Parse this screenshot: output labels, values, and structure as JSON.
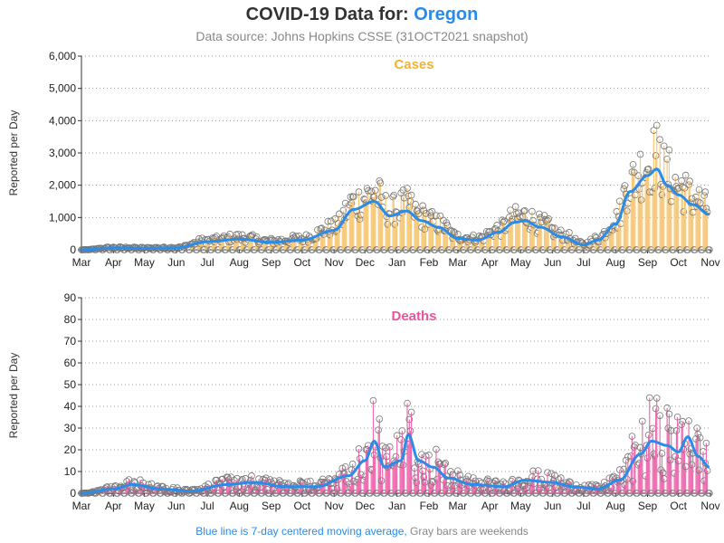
{
  "header": {
    "title_prefix": "COVID-19 Data for: ",
    "title_state": "Oregon",
    "subtitle": "Data source: Johns Hopkins CSSE (31OCT2021 snapshot)"
  },
  "footer": {
    "blue_text": "Blue line is 7-day centered moving average,",
    "gray_text": " Gray bars are weekends"
  },
  "colors": {
    "state": "#2A8BE8",
    "cases": "#F5B232",
    "cases_bar": "#F7C97A",
    "deaths": "#E8559E",
    "deaths_bar": "#EE6DB0",
    "avg_line": "#2A8BE8",
    "weekend": "#888888"
  },
  "chart_data": [
    {
      "type": "bar",
      "title": "Cases",
      "ylabel": "Reported per Day",
      "xlabel": "",
      "ylim": [
        0,
        6000
      ],
      "yticks": [
        "0",
        "1,000",
        "2,000",
        "3,000",
        "4,000",
        "5,000",
        "6,000"
      ],
      "x_months": [
        "Mar",
        "Apr",
        "May",
        "Jun",
        "Jul",
        "Aug",
        "Sep",
        "Oct",
        "Nov",
        "Dec",
        "Jan",
        "Feb",
        "Mar",
        "Apr",
        "May",
        "Jun",
        "Jul",
        "Aug",
        "Sep",
        "Oct",
        "Nov"
      ],
      "x_start": "2020-03-01",
      "x_end": "2021-11-01",
      "grid": "horizontal dotted",
      "moving_avg_knots": [
        [
          "2020-03-01",
          0
        ],
        [
          "2020-04-01",
          60
        ],
        [
          "2020-05-01",
          50
        ],
        [
          "2020-06-01",
          60
        ],
        [
          "2020-07-01",
          250
        ],
        [
          "2020-08-01",
          330
        ],
        [
          "2020-09-01",
          230
        ],
        [
          "2020-10-01",
          300
        ],
        [
          "2020-11-01",
          600
        ],
        [
          "2020-11-20",
          1250
        ],
        [
          "2020-12-10",
          1500
        ],
        [
          "2020-12-25",
          1050
        ],
        [
          "2021-01-10",
          1200
        ],
        [
          "2021-01-25",
          900
        ],
        [
          "2021-02-10",
          700
        ],
        [
          "2021-03-01",
          350
        ],
        [
          "2021-03-20",
          300
        ],
        [
          "2021-04-10",
          550
        ],
        [
          "2021-04-25",
          850
        ],
        [
          "2021-05-05",
          900
        ],
        [
          "2021-05-20",
          700
        ],
        [
          "2021-06-10",
          400
        ],
        [
          "2021-07-01",
          150
        ],
        [
          "2021-07-15",
          300
        ],
        [
          "2021-08-01",
          800
        ],
        [
          "2021-08-15",
          1800
        ],
        [
          "2021-09-01",
          2300
        ],
        [
          "2021-09-10",
          2500
        ],
        [
          "2021-09-20",
          2000
        ],
        [
          "2021-10-01",
          1700
        ],
        [
          "2021-10-15",
          1400
        ],
        [
          "2021-10-31",
          1100
        ]
      ]
    },
    {
      "type": "bar",
      "title": "Deaths",
      "ylabel": "Reported per Day",
      "xlabel": "",
      "ylim": [
        0,
        90
      ],
      "yticks": [
        "0",
        "10",
        "20",
        "30",
        "40",
        "50",
        "60",
        "70",
        "80",
        "90"
      ],
      "x_months": [
        "Mar",
        "Apr",
        "May",
        "Jun",
        "Jul",
        "Aug",
        "Sep",
        "Oct",
        "Nov",
        "Dec",
        "Jan",
        "Feb",
        "Mar",
        "Apr",
        "May",
        "Jun",
        "Jul",
        "Aug",
        "Sep",
        "Oct",
        "Nov"
      ],
      "x_start": "2020-03-01",
      "x_end": "2021-11-01",
      "grid": "horizontal dotted",
      "moving_avg_knots": [
        [
          "2020-03-01",
          0
        ],
        [
          "2020-04-01",
          2
        ],
        [
          "2020-04-20",
          4
        ],
        [
          "2020-05-15",
          2
        ],
        [
          "2020-06-15",
          1
        ],
        [
          "2020-07-20",
          4
        ],
        [
          "2020-08-15",
          5
        ],
        [
          "2020-09-15",
          3
        ],
        [
          "2020-10-15",
          3
        ],
        [
          "2020-11-15",
          8
        ],
        [
          "2020-12-01",
          15
        ],
        [
          "2020-12-10",
          24
        ],
        [
          "2020-12-20",
          12
        ],
        [
          "2021-01-05",
          15
        ],
        [
          "2021-01-12",
          27
        ],
        [
          "2021-01-22",
          15
        ],
        [
          "2021-02-05",
          12
        ],
        [
          "2021-02-20",
          7
        ],
        [
          "2021-03-15",
          4
        ],
        [
          "2021-04-15",
          3
        ],
        [
          "2021-05-05",
          6
        ],
        [
          "2021-06-01",
          5
        ],
        [
          "2021-06-20",
          3
        ],
        [
          "2021-07-15",
          2
        ],
        [
          "2021-08-05",
          6
        ],
        [
          "2021-08-25",
          18
        ],
        [
          "2021-09-05",
          24
        ],
        [
          "2021-09-20",
          22
        ],
        [
          "2021-10-01",
          19
        ],
        [
          "2021-10-10",
          26
        ],
        [
          "2021-10-20",
          17
        ],
        [
          "2021-10-31",
          12
        ]
      ]
    }
  ]
}
